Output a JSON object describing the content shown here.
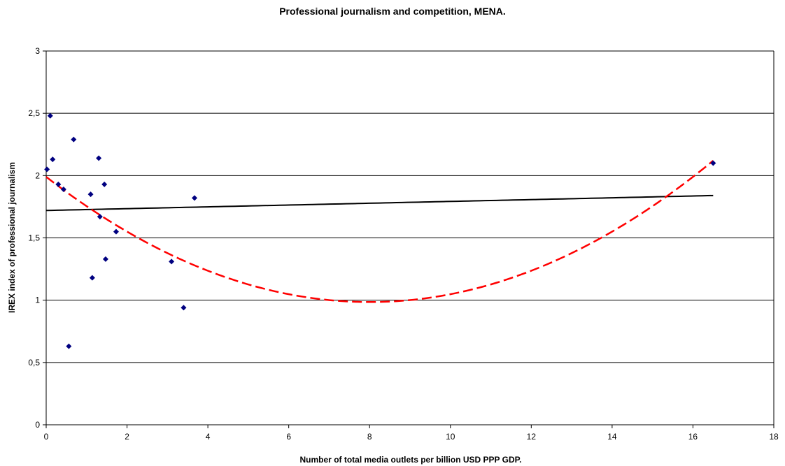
{
  "chart_data": {
    "type": "scatter",
    "title": "Professional journalism and competition, MENA.",
    "xlabel": "Number of total media outlets per billion USD PPP GDP.",
    "ylabel": "IREX index of professional journalism",
    "xlim": [
      0,
      18
    ],
    "ylim": [
      0,
      3
    ],
    "x_ticks": [
      0,
      2,
      4,
      6,
      8,
      10,
      12,
      14,
      16,
      18
    ],
    "y_ticks": [
      0,
      0.5,
      1,
      1.5,
      2,
      2.5,
      3
    ],
    "x_tick_labels": [
      "0",
      "2",
      "4",
      "6",
      "8",
      "10",
      "12",
      "14",
      "16",
      "18"
    ],
    "y_tick_labels": [
      "0",
      "0,5",
      "1",
      "1,5",
      "2",
      "2,5",
      "3"
    ],
    "grid": "horizontal",
    "legend": "none",
    "points": [
      {
        "x": 0.02,
        "y": 2.05
      },
      {
        "x": 0.1,
        "y": 2.48
      },
      {
        "x": 0.16,
        "y": 2.13
      },
      {
        "x": 0.3,
        "y": 1.93
      },
      {
        "x": 0.43,
        "y": 1.89
      },
      {
        "x": 0.56,
        "y": 0.63
      },
      {
        "x": 0.68,
        "y": 2.29
      },
      {
        "x": 1.1,
        "y": 1.85
      },
      {
        "x": 1.14,
        "y": 1.18
      },
      {
        "x": 1.3,
        "y": 2.14
      },
      {
        "x": 1.33,
        "y": 1.67
      },
      {
        "x": 1.44,
        "y": 1.93
      },
      {
        "x": 1.47,
        "y": 1.33
      },
      {
        "x": 1.73,
        "y": 1.55
      },
      {
        "x": 3.1,
        "y": 1.31
      },
      {
        "x": 3.4,
        "y": 0.94
      },
      {
        "x": 3.67,
        "y": 1.82
      },
      {
        "x": 16.5,
        "y": 2.1
      }
    ],
    "trendlines": [
      {
        "kind": "linear",
        "x_range": [
          0,
          16.5
        ],
        "coefficients": [
          1.72,
          0.00727
        ],
        "color": "#000000",
        "dash": "solid"
      },
      {
        "kind": "polynomial",
        "x_range": [
          0,
          16.5
        ],
        "coefficients": [
          1.99,
          -0.2512,
          0.0157
        ],
        "color": "#ff0000",
        "dash": "dashed"
      }
    ],
    "marker_color": "#000080"
  }
}
